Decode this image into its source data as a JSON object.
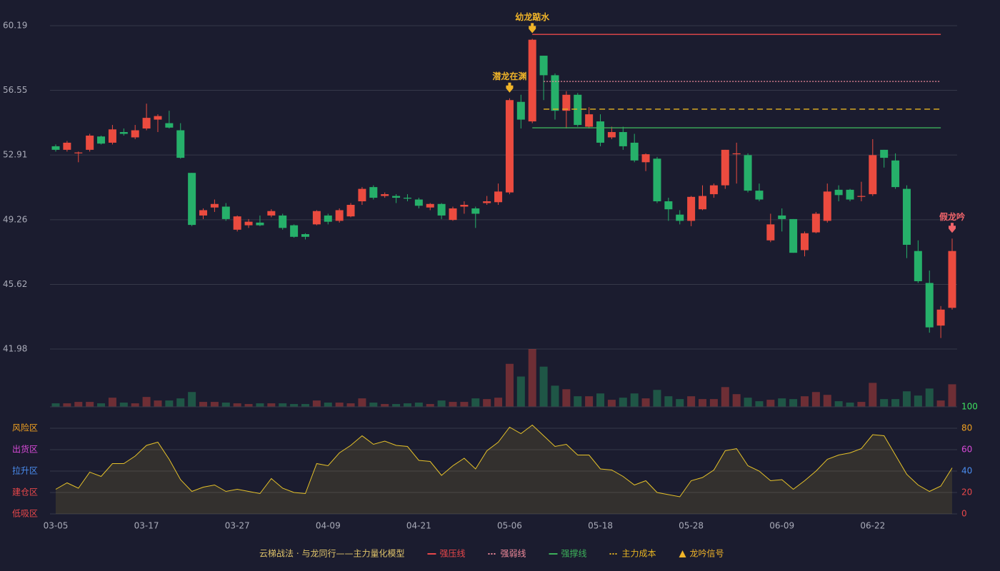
{
  "chart_data": {
    "type": "candlestick",
    "legend_title": "云梯战法 · 与龙同行——主力量化模型",
    "categories": [
      "03-05",
      null,
      null,
      null,
      null,
      null,
      null,
      null,
      "03-17",
      null,
      null,
      null,
      null,
      null,
      null,
      null,
      "03-27",
      null,
      null,
      null,
      null,
      null,
      null,
      null,
      "04-09",
      null,
      null,
      null,
      null,
      null,
      null,
      null,
      "04-21",
      null,
      null,
      null,
      null,
      null,
      null,
      null,
      "05-06",
      null,
      null,
      null,
      null,
      null,
      null,
      null,
      "05-18",
      null,
      null,
      null,
      null,
      null,
      null,
      null,
      "05-28",
      null,
      null,
      null,
      null,
      null,
      null,
      null,
      "06-09",
      null,
      null,
      null,
      null,
      null,
      null,
      null,
      "06-22",
      null,
      null,
      null,
      null,
      null,
      null,
      null
    ],
    "open": [
      53.4,
      53.2,
      53.0,
      53.2,
      53.95,
      53.6,
      54.2,
      53.9,
      54.4,
      54.9,
      54.7,
      54.3,
      51.9,
      49.5,
      49.95,
      50.0,
      48.7,
      48.95,
      49.1,
      49.5,
      49.5,
      48.95,
      48.45,
      49.0,
      49.5,
      49.2,
      49.45,
      50.3,
      51.1,
      50.6,
      50.6,
      50.5,
      50.4,
      49.95,
      50.15,
      49.25,
      50.0,
      49.9,
      50.2,
      50.25,
      50.8,
      55.9,
      54.8,
      58.5,
      57.4,
      55.4,
      56.3,
      54.5,
      54.8,
      53.9,
      54.2,
      53.6,
      52.5,
      52.7,
      50.3,
      49.55,
      49.2,
      49.85,
      50.7,
      51.2,
      52.95,
      52.9,
      50.9,
      48.1,
      49.5,
      49.3,
      47.55,
      48.55,
      49.2,
      50.95,
      50.95,
      50.55,
      50.7,
      53.2,
      52.6,
      51.0,
      47.5,
      45.7,
      43.3,
      44.3
    ],
    "close": [
      53.2,
      53.6,
      53.05,
      54.0,
      53.55,
      54.35,
      54.1,
      54.3,
      55.0,
      55.1,
      54.45,
      52.75,
      48.97,
      49.8,
      50.15,
      49.3,
      49.45,
      49.15,
      48.95,
      49.75,
      48.8,
      48.3,
      48.3,
      49.75,
      49.15,
      49.8,
      50.1,
      51.0,
      50.5,
      50.7,
      50.5,
      50.45,
      50.05,
      50.15,
      49.5,
      49.9,
      50.1,
      49.6,
      50.3,
      50.85,
      56.0,
      54.9,
      59.4,
      57.4,
      55.4,
      56.3,
      54.6,
      55.2,
      53.6,
      54.2,
      53.4,
      52.6,
      52.95,
      50.3,
      49.85,
      49.2,
      50.55,
      50.6,
      51.2,
      53.2,
      53.0,
      50.9,
      50.4,
      49.0,
      49.3,
      47.4,
      48.5,
      49.6,
      50.85,
      50.65,
      50.4,
      50.6,
      52.9,
      52.75,
      51.1,
      47.85,
      45.8,
      43.2,
      44.2,
      47.5
    ],
    "low": [
      53.1,
      53.1,
      52.5,
      53.1,
      53.5,
      53.5,
      54.0,
      53.8,
      54.3,
      54.2,
      54.4,
      52.7,
      48.9,
      49.3,
      49.7,
      49.2,
      48.6,
      48.8,
      48.9,
      49.4,
      48.7,
      48.25,
      48.15,
      48.95,
      49.0,
      49.1,
      49.4,
      50.1,
      50.4,
      50.5,
      50.2,
      50.3,
      49.9,
      49.8,
      49.3,
      49.2,
      49.6,
      48.8,
      50.1,
      50.1,
      50.7,
      54.4,
      54.7,
      56.0,
      54.9,
      54.4,
      54.5,
      54.4,
      53.4,
      53.8,
      53.2,
      52.5,
      52.0,
      50.2,
      49.2,
      49.0,
      48.9,
      49.8,
      50.5,
      51.0,
      51.3,
      50.8,
      50.3,
      48.0,
      48.6,
      47.4,
      47.2,
      48.5,
      49.1,
      50.3,
      50.3,
      50.3,
      50.6,
      52.2,
      51.0,
      47.1,
      45.7,
      42.9,
      42.6,
      44.2
    ],
    "high": [
      53.5,
      53.7,
      53.1,
      54.1,
      54.0,
      54.6,
      54.4,
      54.6,
      55.8,
      55.2,
      55.4,
      54.7,
      51.9,
      49.9,
      50.4,
      50.2,
      49.5,
      49.3,
      49.5,
      49.85,
      49.6,
      49.0,
      48.5,
      49.8,
      49.6,
      49.9,
      50.2,
      51.1,
      51.2,
      50.8,
      50.7,
      50.7,
      50.5,
      50.2,
      50.2,
      50.0,
      50.3,
      50.0,
      50.6,
      51.3,
      56.1,
      56.3,
      59.45,
      58.5,
      57.5,
      56.5,
      56.4,
      55.6,
      55.2,
      54.5,
      54.5,
      54.1,
      53.0,
      52.8,
      50.5,
      49.8,
      50.6,
      51.2,
      51.3,
      53.2,
      53.6,
      53.0,
      51.3,
      49.6,
      49.9,
      49.3,
      48.6,
      49.7,
      51.3,
      51.2,
      51.0,
      51.4,
      53.8,
      53.2,
      53.0,
      51.2,
      48.1,
      46.4,
      44.4,
      48.2
    ],
    "up_color": "#eb4b3f",
    "down_color": "#26b06a",
    "ylim": [
      41.98,
      60.19
    ],
    "yticks": [
      41.98,
      45.62,
      49.26,
      52.91,
      56.55,
      60.19
    ],
    "grid": true,
    "volume": [
      5,
      5,
      7,
      7,
      5,
      13,
      6,
      5,
      14,
      9,
      9,
      12,
      21,
      7,
      7,
      6,
      5,
      4,
      5,
      5,
      5,
      4,
      4,
      9,
      6,
      6,
      5,
      12,
      6,
      4,
      4,
      5,
      6,
      4,
      9,
      7,
      7,
      12,
      11,
      13,
      61,
      43,
      82,
      57,
      30,
      25,
      15,
      15,
      19,
      10,
      13,
      19,
      12,
      24,
      15,
      11,
      15,
      11,
      11,
      28,
      18,
      13,
      8,
      10,
      12,
      11,
      15,
      21,
      17,
      8,
      6,
      7,
      34,
      11,
      11,
      22,
      16,
      26,
      9,
      32
    ],
    "overlays": [
      {
        "name": "强压线",
        "color": "#e8474a",
        "style": "solid",
        "values": [
          null,
          null,
          null,
          null,
          null,
          null,
          null,
          null,
          null,
          null,
          null,
          null,
          null,
          null,
          null,
          null,
          null,
          null,
          null,
          null,
          null,
          null,
          null,
          null,
          null,
          null,
          null,
          null,
          null,
          null,
          null,
          null,
          null,
          null,
          null,
          null,
          null,
          null,
          null,
          null,
          null,
          null,
          59.7,
          59.7,
          59.7,
          59.7,
          59.7,
          59.7,
          59.7,
          59.7,
          59.7,
          59.7,
          59.7,
          59.7,
          59.7,
          59.7,
          59.7,
          59.7,
          59.7,
          59.7,
          59.7,
          59.7,
          59.7,
          59.7,
          59.7,
          59.7,
          59.7,
          59.7,
          59.7,
          59.7,
          59.7,
          59.7,
          59.7,
          59.7,
          59.7,
          59.7,
          59.7,
          59.7,
          59.7,
          null
        ]
      },
      {
        "name": "强弱线",
        "color": "#f08a9a",
        "style": "dotted",
        "values": [
          null,
          null,
          null,
          null,
          null,
          null,
          null,
          null,
          null,
          null,
          null,
          null,
          null,
          null,
          null,
          null,
          null,
          null,
          null,
          null,
          null,
          null,
          null,
          null,
          null,
          null,
          null,
          null,
          null,
          null,
          null,
          null,
          null,
          null,
          null,
          null,
          null,
          null,
          null,
          null,
          null,
          null,
          null,
          57.05,
          57.05,
          57.05,
          57.05,
          57.05,
          57.05,
          57.05,
          57.05,
          57.05,
          57.05,
          57.05,
          57.05,
          57.05,
          57.05,
          57.05,
          57.05,
          57.05,
          57.05,
          57.05,
          57.05,
          57.05,
          57.05,
          57.05,
          57.05,
          57.05,
          57.05,
          57.05,
          57.05,
          57.05,
          57.05,
          57.05,
          57.05,
          57.05,
          57.05,
          57.05,
          57.05,
          null
        ]
      },
      {
        "name": "强撑线",
        "color": "#3cb05a",
        "style": "solid",
        "values": [
          null,
          null,
          null,
          null,
          null,
          null,
          null,
          null,
          null,
          null,
          null,
          null,
          null,
          null,
          null,
          null,
          null,
          null,
          null,
          null,
          null,
          null,
          null,
          null,
          null,
          null,
          null,
          null,
          null,
          null,
          null,
          null,
          null,
          null,
          null,
          null,
          null,
          null,
          null,
          null,
          null,
          null,
          54.44,
          54.44,
          54.44,
          54.44,
          54.44,
          54.44,
          54.44,
          54.44,
          54.44,
          54.44,
          54.44,
          54.44,
          54.44,
          54.44,
          54.44,
          54.44,
          54.44,
          54.44,
          54.44,
          54.44,
          54.44,
          54.44,
          54.44,
          54.44,
          54.44,
          54.44,
          54.44,
          54.44,
          54.44,
          54.44,
          54.44,
          54.44,
          54.44,
          54.44,
          54.44,
          54.44,
          54.44,
          null
        ]
      },
      {
        "name": "主力成本",
        "color": "#e6b422",
        "style": "dashed",
        "values": [
          null,
          null,
          null,
          null,
          null,
          null,
          null,
          null,
          null,
          null,
          null,
          null,
          null,
          null,
          null,
          null,
          null,
          null,
          null,
          null,
          null,
          null,
          null,
          null,
          null,
          null,
          null,
          null,
          null,
          null,
          null,
          null,
          null,
          null,
          null,
          null,
          null,
          null,
          null,
          null,
          null,
          null,
          null,
          55.49,
          55.49,
          55.49,
          55.49,
          55.49,
          55.49,
          55.49,
          55.49,
          55.49,
          55.49,
          55.49,
          55.49,
          55.49,
          55.49,
          55.49,
          55.49,
          55.49,
          55.49,
          55.49,
          55.49,
          55.49,
          55.49,
          55.49,
          55.49,
          55.49,
          55.49,
          55.49,
          55.49,
          55.49,
          55.49,
          55.49,
          55.49,
          55.49,
          55.49,
          55.49,
          55.49,
          null
        ]
      }
    ],
    "signal": {
      "name": "龙吟信号",
      "color": "#f0b429"
    },
    "annotations": [
      {
        "text": "潜龙在渊",
        "at": 40,
        "color": "#f0b429"
      },
      {
        "text": "幼龙踮水",
        "at": 42,
        "color": "#f0b429"
      },
      {
        "text": "假龙吟",
        "at": 79,
        "color": "#f0646a"
      }
    ],
    "indicator": {
      "color": "#e6c229",
      "values": [
        23,
        29,
        24,
        39,
        35,
        47,
        47,
        54,
        64,
        67,
        51,
        32,
        21,
        25,
        27,
        21,
        23,
        21,
        19,
        33,
        24,
        20,
        19,
        47,
        45,
        57,
        64,
        73,
        65,
        68,
        64,
        63,
        50,
        49,
        36,
        45,
        52,
        42,
        59,
        67,
        81,
        75,
        83,
        73,
        63,
        65,
        55,
        55,
        42,
        41,
        35,
        27,
        31,
        20,
        18,
        16,
        31,
        34,
        41,
        59,
        61,
        45,
        40,
        31,
        32,
        23,
        31,
        40,
        51,
        55,
        57,
        61,
        74,
        73,
        55,
        37,
        27,
        21,
        26,
        43
      ],
      "ylim": [
        0,
        100
      ],
      "yticks": [
        0,
        20,
        40,
        60,
        80,
        100
      ],
      "ytick_colors": [
        "#e8474a",
        "#e8474a",
        "#4a8df0",
        "#d84ad8",
        "#f0a020",
        "#3ee060"
      ],
      "zones": [
        {
          "label": "低吸区",
          "value": 0,
          "color": "#e8474a"
        },
        {
          "label": "建仓区",
          "value": 20,
          "color": "#e8474a"
        },
        {
          "label": "拉升区",
          "value": 40,
          "color": "#4a8df0"
        },
        {
          "label": "出货区",
          "value": 60,
          "color": "#d84ad8"
        },
        {
          "label": "风险区",
          "value": 80,
          "color": "#f0a020"
        }
      ]
    }
  }
}
